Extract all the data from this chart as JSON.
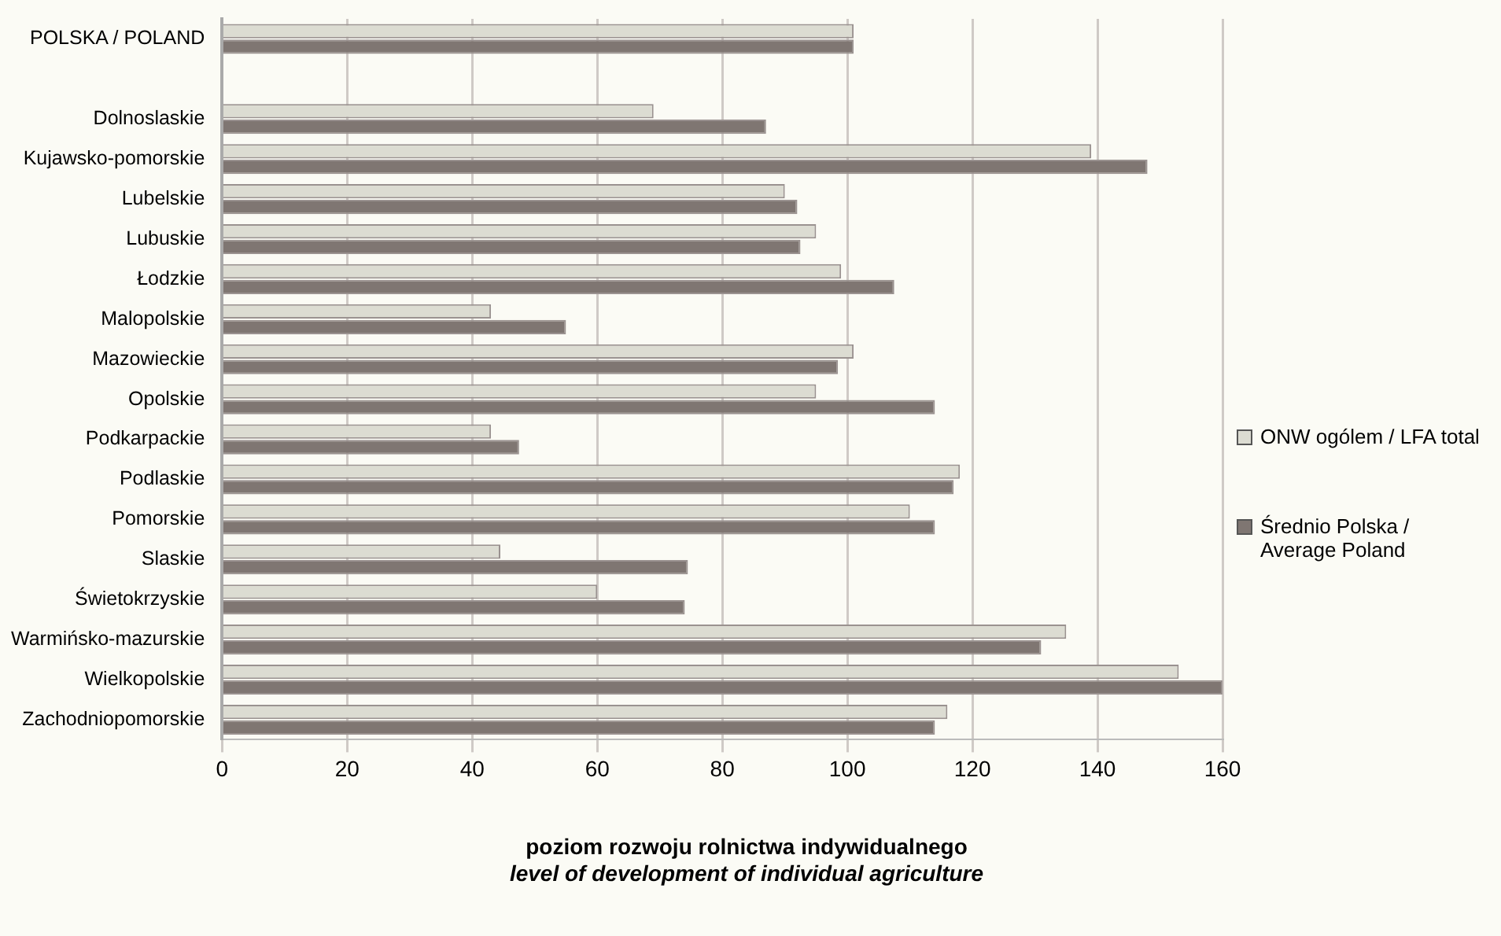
{
  "chart_data": {
    "type": "bar",
    "orientation": "horizontal",
    "xlabel": "poziom rozwoju rolnictwa indywidualnego\nlevel of development of individual agriculture",
    "categories": [
      "POLSKA / POLAND",
      null,
      "Dolnoslaskie",
      "Kujawsko-pomorskie",
      "Lubelskie",
      "Lubuskie",
      "Łodzkie",
      "Malopolskie",
      "Mazowieckie",
      "Opolskie",
      "Podkarpackie",
      "Podlaskie",
      "Pomorskie",
      "Slaskie",
      "Świetokrzyskie",
      "Warmińsko-mazurskie",
      "Wielkopolskie",
      "Zachodniopomorskie"
    ],
    "series": [
      {
        "name": "ONW ogólem / LFA total",
        "color": "#dcdcd2",
        "values": [
          101,
          null,
          69,
          139,
          90,
          95,
          99,
          43,
          101,
          95,
          43,
          118,
          110,
          44.5,
          60,
          135,
          153,
          116
        ]
      },
      {
        "name": "Średnio Polska / Average Poland",
        "color": "#7f7672",
        "values": [
          101,
          null,
          87,
          148,
          92,
          92.5,
          107.5,
          55,
          98.5,
          114,
          47.5,
          117,
          114,
          74.5,
          74,
          131,
          160,
          114
        ]
      }
    ],
    "xlim": [
      0,
      160
    ],
    "xticks": [
      0,
      20,
      40,
      60,
      80,
      100,
      120,
      140,
      160
    ],
    "grid": "x",
    "legend": "right"
  }
}
